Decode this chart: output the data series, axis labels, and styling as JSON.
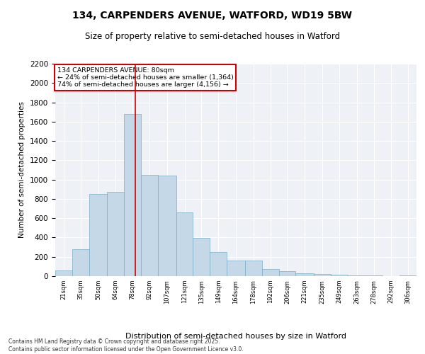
{
  "title1": "134, CARPENDERS AVENUE, WATFORD, WD19 5BW",
  "title2": "Size of property relative to semi-detached houses in Watford",
  "xlabel": "Distribution of semi-detached houses by size in Watford",
  "ylabel": "Number of semi-detached properties",
  "bar_color": "#c5d8e8",
  "bar_edge_color": "#7aaec8",
  "annotation_box_color": "#cc0000",
  "vline_color": "#cc0000",
  "background_color": "#ffffff",
  "plot_bg_color": "#eef2f7",
  "grid_color": "#ffffff",
  "footer_text": "Contains HM Land Registry data © Crown copyright and database right 2025.\nContains public sector information licensed under the Open Government Licence v3.0.",
  "annotation_title": "134 CARPENDERS AVENUE: 80sqm",
  "annotation_line1": "← 24% of semi-detached houses are smaller (1,364)",
  "annotation_line2": "74% of semi-detached houses are larger (4,156) →",
  "property_size": 80,
  "categories": [
    "21sqm",
    "35sqm",
    "50sqm",
    "64sqm",
    "78sqm",
    "92sqm",
    "107sqm",
    "121sqm",
    "135sqm",
    "149sqm",
    "164sqm",
    "178sqm",
    "192sqm",
    "206sqm",
    "221sqm",
    "235sqm",
    "249sqm",
    "263sqm",
    "278sqm",
    "292sqm",
    "306sqm"
  ],
  "bin_edges": [
    14,
    28,
    42,
    57,
    71,
    85,
    99,
    114,
    128,
    142,
    156,
    171,
    185,
    199,
    213,
    228,
    242,
    256,
    271,
    285,
    299,
    313
  ],
  "values": [
    60,
    280,
    850,
    870,
    1680,
    1050,
    1040,
    660,
    395,
    250,
    160,
    160,
    70,
    50,
    30,
    25,
    15,
    8,
    4,
    2,
    5
  ],
  "ylim": [
    0,
    2200
  ],
  "yticks": [
    0,
    200,
    400,
    600,
    800,
    1000,
    1200,
    1400,
    1600,
    1800,
    2000,
    2200
  ]
}
